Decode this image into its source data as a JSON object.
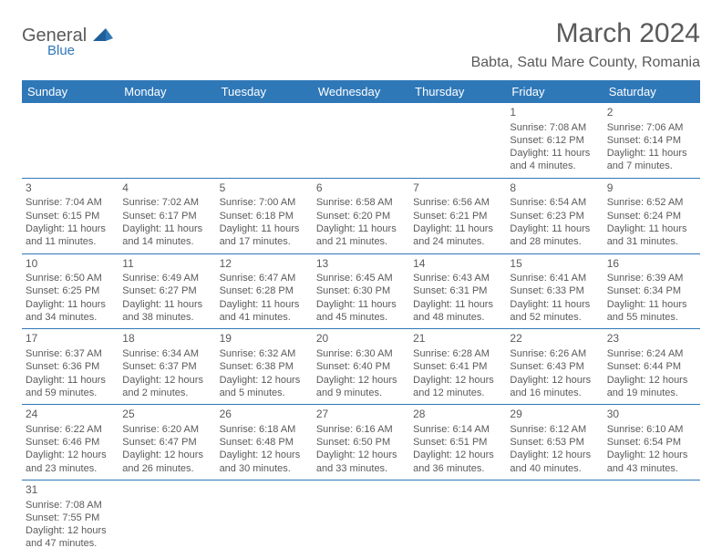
{
  "logo": {
    "main": "General",
    "sub": "Blue"
  },
  "header": {
    "title": "March 2024",
    "location": "Babta, Satu Mare County, Romania"
  },
  "colors": {
    "header_bg": "#2f78b8",
    "text": "#5a5a5a",
    "row_border": "#2f78b8"
  },
  "dayNames": [
    "Sunday",
    "Monday",
    "Tuesday",
    "Wednesday",
    "Thursday",
    "Friday",
    "Saturday"
  ],
  "weeks": [
    [
      null,
      null,
      null,
      null,
      null,
      {
        "num": "1",
        "sunrise": "Sunrise: 7:08 AM",
        "sunset": "Sunset: 6:12 PM",
        "daylight": "Daylight: 11 hours and 4 minutes."
      },
      {
        "num": "2",
        "sunrise": "Sunrise: 7:06 AM",
        "sunset": "Sunset: 6:14 PM",
        "daylight": "Daylight: 11 hours and 7 minutes."
      }
    ],
    [
      {
        "num": "3",
        "sunrise": "Sunrise: 7:04 AM",
        "sunset": "Sunset: 6:15 PM",
        "daylight": "Daylight: 11 hours and 11 minutes."
      },
      {
        "num": "4",
        "sunrise": "Sunrise: 7:02 AM",
        "sunset": "Sunset: 6:17 PM",
        "daylight": "Daylight: 11 hours and 14 minutes."
      },
      {
        "num": "5",
        "sunrise": "Sunrise: 7:00 AM",
        "sunset": "Sunset: 6:18 PM",
        "daylight": "Daylight: 11 hours and 17 minutes."
      },
      {
        "num": "6",
        "sunrise": "Sunrise: 6:58 AM",
        "sunset": "Sunset: 6:20 PM",
        "daylight": "Daylight: 11 hours and 21 minutes."
      },
      {
        "num": "7",
        "sunrise": "Sunrise: 6:56 AM",
        "sunset": "Sunset: 6:21 PM",
        "daylight": "Daylight: 11 hours and 24 minutes."
      },
      {
        "num": "8",
        "sunrise": "Sunrise: 6:54 AM",
        "sunset": "Sunset: 6:23 PM",
        "daylight": "Daylight: 11 hours and 28 minutes."
      },
      {
        "num": "9",
        "sunrise": "Sunrise: 6:52 AM",
        "sunset": "Sunset: 6:24 PM",
        "daylight": "Daylight: 11 hours and 31 minutes."
      }
    ],
    [
      {
        "num": "10",
        "sunrise": "Sunrise: 6:50 AM",
        "sunset": "Sunset: 6:25 PM",
        "daylight": "Daylight: 11 hours and 34 minutes."
      },
      {
        "num": "11",
        "sunrise": "Sunrise: 6:49 AM",
        "sunset": "Sunset: 6:27 PM",
        "daylight": "Daylight: 11 hours and 38 minutes."
      },
      {
        "num": "12",
        "sunrise": "Sunrise: 6:47 AM",
        "sunset": "Sunset: 6:28 PM",
        "daylight": "Daylight: 11 hours and 41 minutes."
      },
      {
        "num": "13",
        "sunrise": "Sunrise: 6:45 AM",
        "sunset": "Sunset: 6:30 PM",
        "daylight": "Daylight: 11 hours and 45 minutes."
      },
      {
        "num": "14",
        "sunrise": "Sunrise: 6:43 AM",
        "sunset": "Sunset: 6:31 PM",
        "daylight": "Daylight: 11 hours and 48 minutes."
      },
      {
        "num": "15",
        "sunrise": "Sunrise: 6:41 AM",
        "sunset": "Sunset: 6:33 PM",
        "daylight": "Daylight: 11 hours and 52 minutes."
      },
      {
        "num": "16",
        "sunrise": "Sunrise: 6:39 AM",
        "sunset": "Sunset: 6:34 PM",
        "daylight": "Daylight: 11 hours and 55 minutes."
      }
    ],
    [
      {
        "num": "17",
        "sunrise": "Sunrise: 6:37 AM",
        "sunset": "Sunset: 6:36 PM",
        "daylight": "Daylight: 11 hours and 59 minutes."
      },
      {
        "num": "18",
        "sunrise": "Sunrise: 6:34 AM",
        "sunset": "Sunset: 6:37 PM",
        "daylight": "Daylight: 12 hours and 2 minutes."
      },
      {
        "num": "19",
        "sunrise": "Sunrise: 6:32 AM",
        "sunset": "Sunset: 6:38 PM",
        "daylight": "Daylight: 12 hours and 5 minutes."
      },
      {
        "num": "20",
        "sunrise": "Sunrise: 6:30 AM",
        "sunset": "Sunset: 6:40 PM",
        "daylight": "Daylight: 12 hours and 9 minutes."
      },
      {
        "num": "21",
        "sunrise": "Sunrise: 6:28 AM",
        "sunset": "Sunset: 6:41 PM",
        "daylight": "Daylight: 12 hours and 12 minutes."
      },
      {
        "num": "22",
        "sunrise": "Sunrise: 6:26 AM",
        "sunset": "Sunset: 6:43 PM",
        "daylight": "Daylight: 12 hours and 16 minutes."
      },
      {
        "num": "23",
        "sunrise": "Sunrise: 6:24 AM",
        "sunset": "Sunset: 6:44 PM",
        "daylight": "Daylight: 12 hours and 19 minutes."
      }
    ],
    [
      {
        "num": "24",
        "sunrise": "Sunrise: 6:22 AM",
        "sunset": "Sunset: 6:46 PM",
        "daylight": "Daylight: 12 hours and 23 minutes."
      },
      {
        "num": "25",
        "sunrise": "Sunrise: 6:20 AM",
        "sunset": "Sunset: 6:47 PM",
        "daylight": "Daylight: 12 hours and 26 minutes."
      },
      {
        "num": "26",
        "sunrise": "Sunrise: 6:18 AM",
        "sunset": "Sunset: 6:48 PM",
        "daylight": "Daylight: 12 hours and 30 minutes."
      },
      {
        "num": "27",
        "sunrise": "Sunrise: 6:16 AM",
        "sunset": "Sunset: 6:50 PM",
        "daylight": "Daylight: 12 hours and 33 minutes."
      },
      {
        "num": "28",
        "sunrise": "Sunrise: 6:14 AM",
        "sunset": "Sunset: 6:51 PM",
        "daylight": "Daylight: 12 hours and 36 minutes."
      },
      {
        "num": "29",
        "sunrise": "Sunrise: 6:12 AM",
        "sunset": "Sunset: 6:53 PM",
        "daylight": "Daylight: 12 hours and 40 minutes."
      },
      {
        "num": "30",
        "sunrise": "Sunrise: 6:10 AM",
        "sunset": "Sunset: 6:54 PM",
        "daylight": "Daylight: 12 hours and 43 minutes."
      }
    ],
    [
      {
        "num": "31",
        "sunrise": "Sunrise: 7:08 AM",
        "sunset": "Sunset: 7:55 PM",
        "daylight": "Daylight: 12 hours and 47 minutes."
      },
      null,
      null,
      null,
      null,
      null,
      null
    ]
  ]
}
